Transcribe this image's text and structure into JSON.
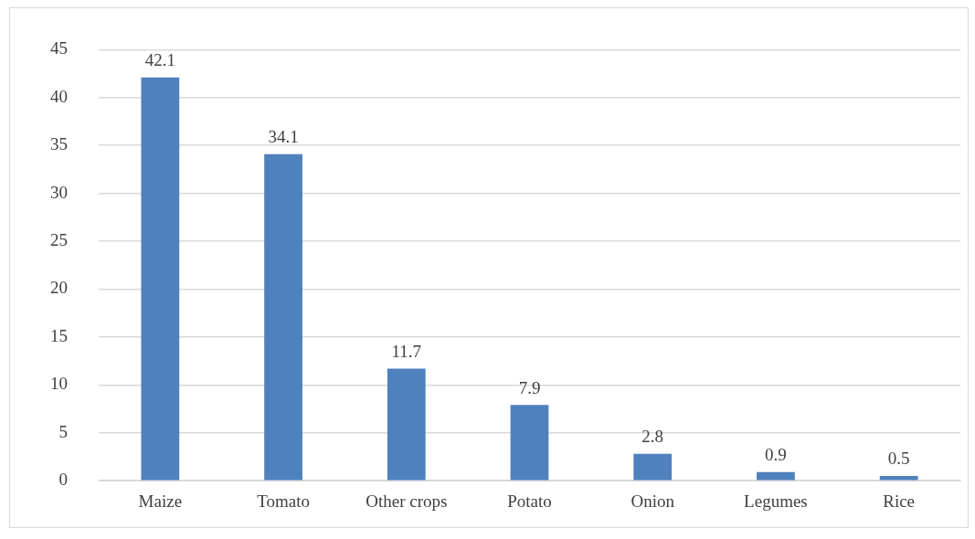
{
  "chart_data": {
    "type": "bar",
    "categories": [
      "Maize",
      "Tomato",
      "Other crops",
      "Potato",
      "Onion",
      "Legumes",
      "Rice"
    ],
    "values": [
      42.1,
      34.1,
      11.7,
      7.9,
      2.8,
      0.9,
      0.5
    ],
    "color": "#4f81bd",
    "ylim": [
      0,
      45
    ],
    "yticks": [
      0,
      5,
      10,
      15,
      20,
      25,
      30,
      35,
      40,
      45
    ],
    "grid": "y",
    "data_labels": true
  }
}
